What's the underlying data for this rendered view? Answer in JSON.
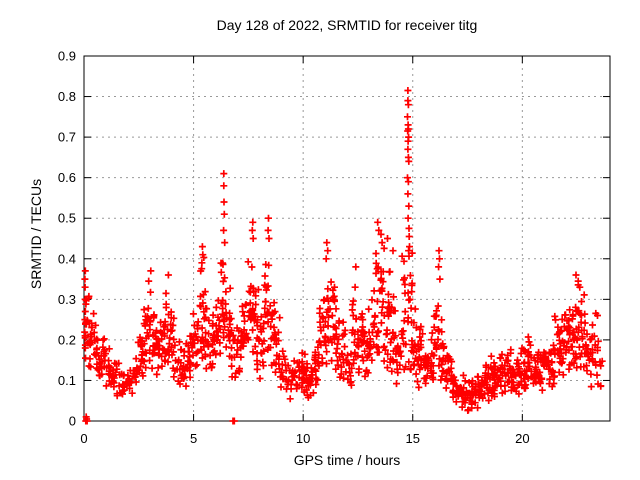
{
  "chart_data": {
    "type": "scatter",
    "title": "Day 128 of 2022, SRMTID for receiver titg",
    "xlabel": "GPS time / hours",
    "ylabel": "SRMTID / TECUs",
    "xlim": [
      0,
      24
    ],
    "ylim": [
      0,
      0.9
    ],
    "xticks": [
      0,
      5,
      10,
      15,
      20
    ],
    "xtick_labels": [
      "0",
      "5",
      "10",
      "15",
      "20"
    ],
    "yticks": [
      0,
      0.1,
      0.2,
      0.3,
      0.4,
      0.5,
      0.6,
      0.7,
      0.8,
      0.9
    ],
    "ytick_labels": [
      "0",
      "0.1",
      "0.2",
      "0.3",
      "0.4",
      "0.5",
      "0.6",
      "0.7",
      "0.8",
      "0.9"
    ],
    "grid": true,
    "legend": "none",
    "marker": "plus",
    "marker_color": "#ff0000",
    "grid_color": "#999999",
    "axis_color": "#000000",
    "background_color": "#ffffff",
    "envelope_bins_note": "dense scatter summarized as [hour_center, y_min, y_max, point_count] per 0.25 h bin, values in TECUs read from gridlines",
    "envelope": [
      [
        0.1,
        0.15,
        0.33,
        14
      ],
      [
        0.35,
        0.12,
        0.3,
        16
      ],
      [
        0.6,
        0.1,
        0.26,
        16
      ],
      [
        0.85,
        0.1,
        0.22,
        16
      ],
      [
        1.1,
        0.08,
        0.2,
        14
      ],
      [
        1.35,
        0.06,
        0.18,
        12
      ],
      [
        1.6,
        0.05,
        0.16,
        10
      ],
      [
        1.85,
        0.05,
        0.14,
        10
      ],
      [
        2.1,
        0.05,
        0.14,
        12
      ],
      [
        2.35,
        0.07,
        0.18,
        14
      ],
      [
        2.6,
        0.1,
        0.26,
        16
      ],
      [
        2.85,
        0.12,
        0.32,
        18
      ],
      [
        3.1,
        0.12,
        0.36,
        18
      ],
      [
        3.35,
        0.1,
        0.28,
        16
      ],
      [
        3.6,
        0.12,
        0.3,
        16
      ],
      [
        3.85,
        0.12,
        0.34,
        16
      ],
      [
        4.1,
        0.1,
        0.3,
        14
      ],
      [
        4.35,
        0.08,
        0.22,
        12
      ],
      [
        4.6,
        0.08,
        0.2,
        14
      ],
      [
        4.85,
        0.1,
        0.26,
        16
      ],
      [
        5.1,
        0.12,
        0.32,
        16
      ],
      [
        5.35,
        0.14,
        0.43,
        18
      ],
      [
        5.6,
        0.12,
        0.35,
        16
      ],
      [
        5.85,
        0.1,
        0.3,
        16
      ],
      [
        6.1,
        0.14,
        0.38,
        16
      ],
      [
        6.35,
        0.18,
        0.45,
        18
      ],
      [
        6.6,
        0.12,
        0.35,
        16
      ],
      [
        6.85,
        0.1,
        0.24,
        12
      ],
      [
        7.1,
        0.1,
        0.28,
        14
      ],
      [
        7.35,
        0.12,
        0.35,
        16
      ],
      [
        7.6,
        0.14,
        0.44,
        18
      ],
      [
        7.85,
        0.12,
        0.4,
        16
      ],
      [
        8.1,
        0.1,
        0.34,
        16
      ],
      [
        8.35,
        0.14,
        0.46,
        18
      ],
      [
        8.6,
        0.12,
        0.34,
        16
      ],
      [
        8.85,
        0.1,
        0.28,
        14
      ],
      [
        9.1,
        0.06,
        0.2,
        12
      ],
      [
        9.35,
        0.04,
        0.15,
        10
      ],
      [
        9.6,
        0.06,
        0.18,
        12
      ],
      [
        9.85,
        0.07,
        0.2,
        14
      ],
      [
        10.1,
        0.06,
        0.18,
        16
      ],
      [
        10.35,
        0.05,
        0.16,
        16
      ],
      [
        10.6,
        0.08,
        0.22,
        16
      ],
      [
        10.85,
        0.12,
        0.34,
        16
      ],
      [
        11.1,
        0.14,
        0.42,
        18
      ],
      [
        11.35,
        0.12,
        0.38,
        16
      ],
      [
        11.6,
        0.1,
        0.3,
        16
      ],
      [
        11.85,
        0.08,
        0.25,
        14
      ],
      [
        12.1,
        0.06,
        0.2,
        12
      ],
      [
        12.35,
        0.1,
        0.36,
        16
      ],
      [
        12.6,
        0.1,
        0.3,
        16
      ],
      [
        12.85,
        0.1,
        0.28,
        16
      ],
      [
        13.1,
        0.12,
        0.34,
        16
      ],
      [
        13.35,
        0.14,
        0.46,
        18
      ],
      [
        13.6,
        0.14,
        0.45,
        18
      ],
      [
        13.85,
        0.12,
        0.43,
        16
      ],
      [
        14.1,
        0.1,
        0.4,
        16
      ],
      [
        14.35,
        0.08,
        0.3,
        14
      ],
      [
        14.6,
        0.12,
        0.42,
        16
      ],
      [
        14.85,
        0.1,
        0.44,
        18
      ],
      [
        15.1,
        0.08,
        0.3,
        16
      ],
      [
        15.35,
        0.08,
        0.25,
        16
      ],
      [
        15.6,
        0.07,
        0.22,
        16
      ],
      [
        15.85,
        0.08,
        0.25,
        16
      ],
      [
        16.1,
        0.1,
        0.38,
        16
      ],
      [
        16.35,
        0.08,
        0.28,
        14
      ],
      [
        16.6,
        0.06,
        0.2,
        14
      ],
      [
        16.85,
        0.05,
        0.16,
        14
      ],
      [
        17.1,
        0.04,
        0.14,
        14
      ],
      [
        17.35,
        0.03,
        0.13,
        14
      ],
      [
        17.6,
        0.02,
        0.12,
        14
      ],
      [
        17.85,
        0.03,
        0.13,
        14
      ],
      [
        18.1,
        0.04,
        0.14,
        16
      ],
      [
        18.35,
        0.05,
        0.16,
        16
      ],
      [
        18.6,
        0.05,
        0.18,
        16
      ],
      [
        18.85,
        0.05,
        0.16,
        16
      ],
      [
        19.1,
        0.06,
        0.18,
        16
      ],
      [
        19.35,
        0.06,
        0.2,
        16
      ],
      [
        19.6,
        0.05,
        0.16,
        16
      ],
      [
        19.85,
        0.06,
        0.18,
        16
      ],
      [
        20.1,
        0.06,
        0.2,
        16
      ],
      [
        20.35,
        0.07,
        0.22,
        16
      ],
      [
        20.6,
        0.06,
        0.18,
        16
      ],
      [
        20.85,
        0.07,
        0.2,
        16
      ],
      [
        21.1,
        0.08,
        0.24,
        16
      ],
      [
        21.35,
        0.08,
        0.22,
        16
      ],
      [
        21.6,
        0.1,
        0.28,
        16
      ],
      [
        21.85,
        0.1,
        0.3,
        16
      ],
      [
        22.1,
        0.12,
        0.32,
        18
      ],
      [
        22.35,
        0.12,
        0.36,
        18
      ],
      [
        22.6,
        0.12,
        0.36,
        18
      ],
      [
        22.85,
        0.1,
        0.33,
        16
      ],
      [
        23.1,
        0.08,
        0.3,
        14
      ],
      [
        23.35,
        0.1,
        0.28,
        12
      ],
      [
        23.55,
        0.08,
        0.18,
        6
      ]
    ],
    "spike_points": [
      [
        0.04,
        0.35
      ],
      [
        0.05,
        0.33
      ],
      [
        0.05,
        0.3
      ],
      [
        0.06,
        0.37
      ],
      [
        0.06,
        0.27
      ],
      [
        0.07,
        0.24
      ],
      [
        0.05,
        0.21
      ],
      [
        0.06,
        0.18
      ],
      [
        0.07,
        0.155
      ],
      [
        0.04,
        0.25
      ],
      [
        2.95,
        0.345
      ],
      [
        3.05,
        0.37
      ],
      [
        3.85,
        0.36
      ],
      [
        5.38,
        0.39
      ],
      [
        5.4,
        0.43
      ],
      [
        5.42,
        0.41
      ],
      [
        6.37,
        0.47
      ],
      [
        6.38,
        0.58
      ],
      [
        6.38,
        0.61
      ],
      [
        6.39,
        0.54
      ],
      [
        6.4,
        0.51
      ],
      [
        6.42,
        0.44
      ],
      [
        7.68,
        0.47
      ],
      [
        7.7,
        0.49
      ],
      [
        7.72,
        0.45
      ],
      [
        8.4,
        0.47
      ],
      [
        8.42,
        0.5
      ],
      [
        8.44,
        0.45
      ],
      [
        11.05,
        0.4
      ],
      [
        11.08,
        0.44
      ],
      [
        11.12,
        0.42
      ],
      [
        12.4,
        0.38
      ],
      [
        13.4,
        0.49
      ],
      [
        13.45,
        0.47
      ],
      [
        13.55,
        0.46
      ],
      [
        13.6,
        0.44
      ],
      [
        13.85,
        0.45
      ],
      [
        14.1,
        0.42
      ],
      [
        14.76,
        0.75
      ],
      [
        14.76,
        0.6
      ],
      [
        14.77,
        0.715
      ],
      [
        14.78,
        0.815
      ],
      [
        14.78,
        0.79
      ],
      [
        14.78,
        0.67
      ],
      [
        14.78,
        0.56
      ],
      [
        14.79,
        0.73
      ],
      [
        14.79,
        0.69
      ],
      [
        14.79,
        0.5
      ],
      [
        14.8,
        0.78
      ],
      [
        14.8,
        0.72
      ],
      [
        14.8,
        0.65
      ],
      [
        14.8,
        0.59
      ],
      [
        14.81,
        0.7
      ],
      [
        14.81,
        0.42
      ],
      [
        14.82,
        0.64
      ],
      [
        14.82,
        0.53
      ],
      [
        14.83,
        0.475
      ],
      [
        14.84,
        0.455
      ],
      [
        14.85,
        0.43
      ],
      [
        16.18,
        0.38
      ],
      [
        16.2,
        0.42
      ],
      [
        16.22,
        0.4
      ],
      [
        16.24,
        0.35
      ],
      [
        22.45,
        0.36
      ],
      [
        22.55,
        0.345
      ],
      [
        22.62,
        0.33
      ]
    ],
    "zero_points": [
      [
        0.08,
        0.0
      ],
      [
        0.1,
        0.0
      ],
      [
        0.12,
        0.005
      ],
      [
        0.1,
        0.01
      ],
      [
        0.14,
        0.0
      ],
      [
        6.8,
        0.0
      ],
      [
        6.86,
        0.0
      ]
    ]
  }
}
